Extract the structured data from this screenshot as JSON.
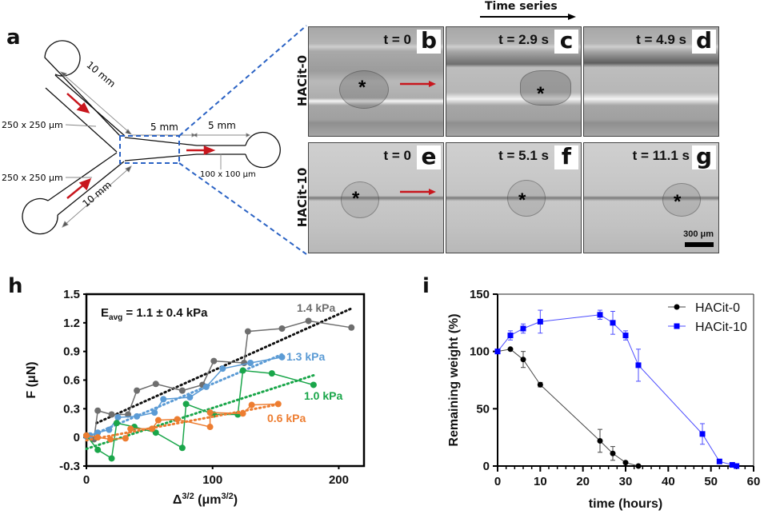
{
  "panels": {
    "a": {
      "letter": "a",
      "labels": {
        "inlet_top_length": "10 mm",
        "inlet_bottom_length": "10 mm",
        "channel_top_size": "250 x 250 μm",
        "channel_bottom_size": "250 x 250 μm",
        "taper_length": "5 mm",
        "outlet_length": "5 mm",
        "outlet_size": "100 x 100 μm"
      }
    },
    "time_series_label": "Time series",
    "rows": [
      {
        "label": "HACit-0",
        "frames": [
          {
            "letter": "b",
            "time": "t = 0"
          },
          {
            "letter": "c",
            "time": "t = 2.9 s"
          },
          {
            "letter": "d",
            "time": "t = 4.9 s"
          }
        ]
      },
      {
        "label": "HACit-10",
        "frames": [
          {
            "letter": "e",
            "time": "t = 0"
          },
          {
            "letter": "f",
            "time": "t = 5.1 s"
          },
          {
            "letter": "g",
            "time": "t = 11.1 s"
          }
        ]
      }
    ],
    "scale_bar": "300 μm",
    "h": {
      "letter": "h"
    },
    "i": {
      "letter": "i"
    }
  },
  "colors": {
    "dash_blue": "#2a62c4",
    "flow_red": "#c8161d",
    "gray_series": "#6e6e6e",
    "blue_series": "#5b9bd5",
    "green_series": "#1aa64a",
    "orange_series": "#ed7d31",
    "hacit10_blue": "#0000ff"
  },
  "chart_data": [
    {
      "id": "h",
      "type": "line",
      "title": "",
      "annotation": "E_avg = 1.1 ± 0.4 kPa",
      "annotation_main": "E",
      "annotation_sub": "avg",
      "annotation_rest": " = 1.1 ± 0.4 kPa",
      "xlabel": "Δ3/2 (μm3/2)",
      "xlabel_parts": [
        "Δ",
        "3/2",
        " (μm",
        "3/2",
        ")"
      ],
      "ylabel": "F (μN)",
      "xlim": [
        0,
        220
      ],
      "ylim": [
        -0.3,
        1.5
      ],
      "xticks": [
        "0",
        "100",
        "200"
      ],
      "xtick_values": [
        0,
        100,
        200
      ],
      "yticks": [
        "-0.3",
        "0",
        "0.3",
        "0.6",
        "0.9",
        "1.2",
        "1.5"
      ],
      "ytick_values": [
        -0.3,
        0,
        0.3,
        0.6,
        0.9,
        1.2,
        1.5
      ],
      "series": [
        {
          "name": "1.4 kPa",
          "color": "#6e6e6e",
          "fit_color": "#111111",
          "x": [
            0,
            6,
            9,
            20,
            33,
            40,
            55,
            76,
            92,
            101,
            125,
            128,
            155,
            176,
            210
          ],
          "y": [
            0.02,
            -0.02,
            0.28,
            0.24,
            0.24,
            0.49,
            0.56,
            0.49,
            0.55,
            0.8,
            0.78,
            1.11,
            1.14,
            1.22,
            1.15
          ],
          "fit": {
            "x": [
              8,
              210
            ],
            "y": [
              0.15,
              1.35
            ]
          }
        },
        {
          "name": "1.3 kPa",
          "color": "#5b9bd5",
          "fit_color": "#5b9bd5",
          "x": [
            0,
            3,
            9,
            18,
            25,
            40,
            54,
            61,
            82,
            95,
            108,
            130,
            155
          ],
          "y": [
            0.01,
            0.02,
            0.05,
            0.08,
            0.21,
            0.22,
            0.26,
            0.4,
            0.42,
            0.53,
            0.72,
            0.78,
            0.84
          ],
          "fit": {
            "x": [
              0,
              155
            ],
            "y": [
              0.0,
              0.87
            ]
          }
        },
        {
          "name": "1.0 kPa",
          "color": "#1aa64a",
          "fit_color": "#1aa64a",
          "x": [
            0,
            9,
            20,
            24,
            38,
            55,
            76,
            79,
            101,
            120,
            124,
            147,
            180
          ],
          "y": [
            0.02,
            -0.13,
            -0.22,
            0.15,
            0.11,
            0.05,
            -0.11,
            0.35,
            0.24,
            0.24,
            0.7,
            0.67,
            0.55
          ],
          "fit": {
            "x": [
              0,
              180
            ],
            "y": [
              -0.12,
              0.65
            ]
          }
        },
        {
          "name": "0.6 kPa",
          "color": "#ed7d31",
          "fit_color": "#ed7d31",
          "x": [
            0,
            9,
            19,
            31,
            35,
            52,
            57,
            72,
            98,
            98,
            124,
            131,
            152
          ],
          "y": [
            0.02,
            0.0,
            -0.02,
            -0.01,
            0.09,
            0.09,
            0.18,
            0.19,
            0.11,
            0.26,
            0.25,
            0.34,
            0.35
          ],
          "fit": {
            "x": [
              0,
              150
            ],
            "y": [
              -0.03,
              0.34
            ]
          }
        }
      ],
      "series_labels": [
        "1.4 kPa",
        "1.3 kPa",
        "1.0 kPa",
        "0.6 kPa"
      ],
      "grid": false,
      "legend": "inline-labels"
    },
    {
      "id": "i",
      "type": "line",
      "title": "",
      "xlabel": "time (hours)",
      "ylabel": "Remaining weight (%)",
      "xlim": [
        0,
        60
      ],
      "ylim": [
        0,
        150
      ],
      "xticks": [
        "0",
        "10",
        "20",
        "30",
        "40",
        "50",
        "60"
      ],
      "xtick_values": [
        0,
        10,
        20,
        30,
        40,
        50,
        60
      ],
      "yticks": [
        "0",
        "50",
        "100",
        "150"
      ],
      "ytick_values": [
        0,
        50,
        100,
        150
      ],
      "series": [
        {
          "name": "HACit-0",
          "color": "#000000",
          "line_color": "#444444",
          "marker": "circle",
          "x": [
            0,
            3,
            6,
            10,
            24,
            27,
            30,
            33
          ],
          "y": [
            100,
            102,
            93,
            71,
            22,
            11,
            3,
            0
          ],
          "err": [
            0,
            0,
            7,
            2,
            10,
            6,
            0,
            0
          ]
        },
        {
          "name": "HACit-10",
          "color": "#0000ff",
          "line_color": "#4d4dff",
          "marker": "square",
          "x": [
            0,
            3,
            6,
            10,
            24,
            27,
            30,
            33,
            48,
            52,
            55,
            56
          ],
          "y": [
            100,
            114,
            120,
            126,
            132,
            125,
            114,
            88,
            28,
            4,
            1,
            0
          ],
          "err": [
            0,
            4,
            4,
            10,
            4,
            10,
            4,
            14,
            9,
            0,
            0,
            0
          ]
        }
      ],
      "grid": false,
      "legend": "top-right"
    }
  ]
}
